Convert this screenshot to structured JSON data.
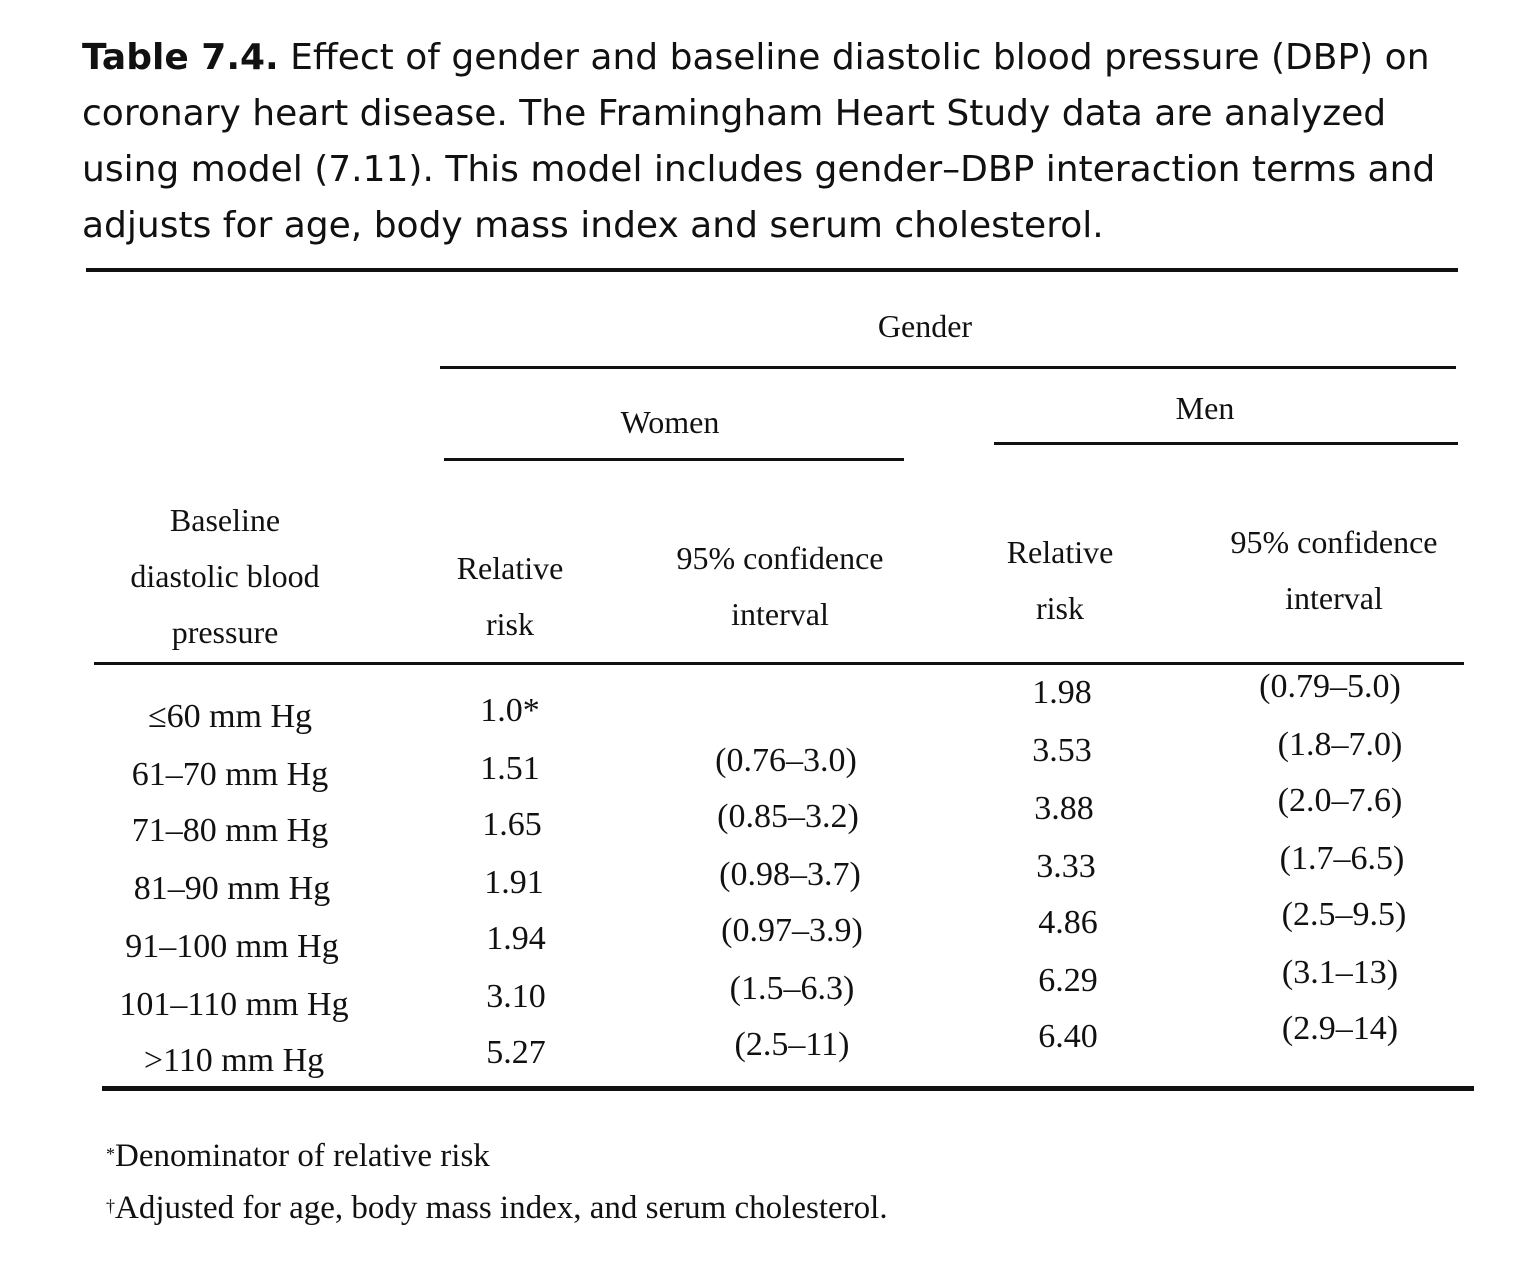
{
  "caption": {
    "label": "Table 7.4.",
    "text": "Effect of gender and baseline diastolic blood pressure (DBP) on coronary heart disease. The Framingham Heart Study data are analyzed using model (7.11). This model includes gender–DBP interaction terms and adjusts for age, body mass index and serum cholesterol."
  },
  "table": {
    "spanner": "Gender",
    "groups": [
      "Women",
      "Men"
    ],
    "row_header_lines": [
      "Baseline",
      "diastolic blood",
      "pressure"
    ],
    "rr_header_lines": [
      "Relative",
      "risk"
    ],
    "ci_header_lines": [
      "95% confidence",
      "interval"
    ],
    "rows": [
      {
        "label": "≤60 mm Hg",
        "women_rr": "1.0*",
        "women_ci": "",
        "men_rr": "1.98",
        "men_ci": "(0.79–5.0)"
      },
      {
        "label": "61–70 mm Hg",
        "women_rr": "1.51",
        "women_ci": "(0.76–3.0)",
        "men_rr": "3.53",
        "men_ci": "(1.8–7.0)"
      },
      {
        "label": "71–80 mm Hg",
        "women_rr": "1.65",
        "women_ci": "(0.85–3.2)",
        "men_rr": "3.88",
        "men_ci": "(2.0–7.6)"
      },
      {
        "label": "81–90 mm Hg",
        "women_rr": "1.91",
        "women_ci": "(0.98–3.7)",
        "men_rr": "3.33",
        "men_ci": "(1.7–6.5)"
      },
      {
        "label": "91–100 mm Hg",
        "women_rr": "1.94",
        "women_ci": "(0.97–3.9)",
        "men_rr": "4.86",
        "men_ci": "(2.5–9.5)"
      },
      {
        "label": "101–110 mm Hg",
        "women_rr": "3.10",
        "women_ci": "(1.5–6.3)",
        "men_rr": "6.29",
        "men_ci": "(3.1–13)"
      },
      {
        "label": ">110 mm Hg",
        "women_rr": "5.27",
        "women_ci": "(2.5–11)",
        "men_rr": "6.40",
        "men_ci": "(2.9–14)"
      }
    ]
  },
  "footnotes": [
    {
      "mark": "*",
      "text": "Denominator of relative risk"
    },
    {
      "mark": "†",
      "text": "Adjusted for age, body mass index, and serum cholesterol."
    }
  ]
}
